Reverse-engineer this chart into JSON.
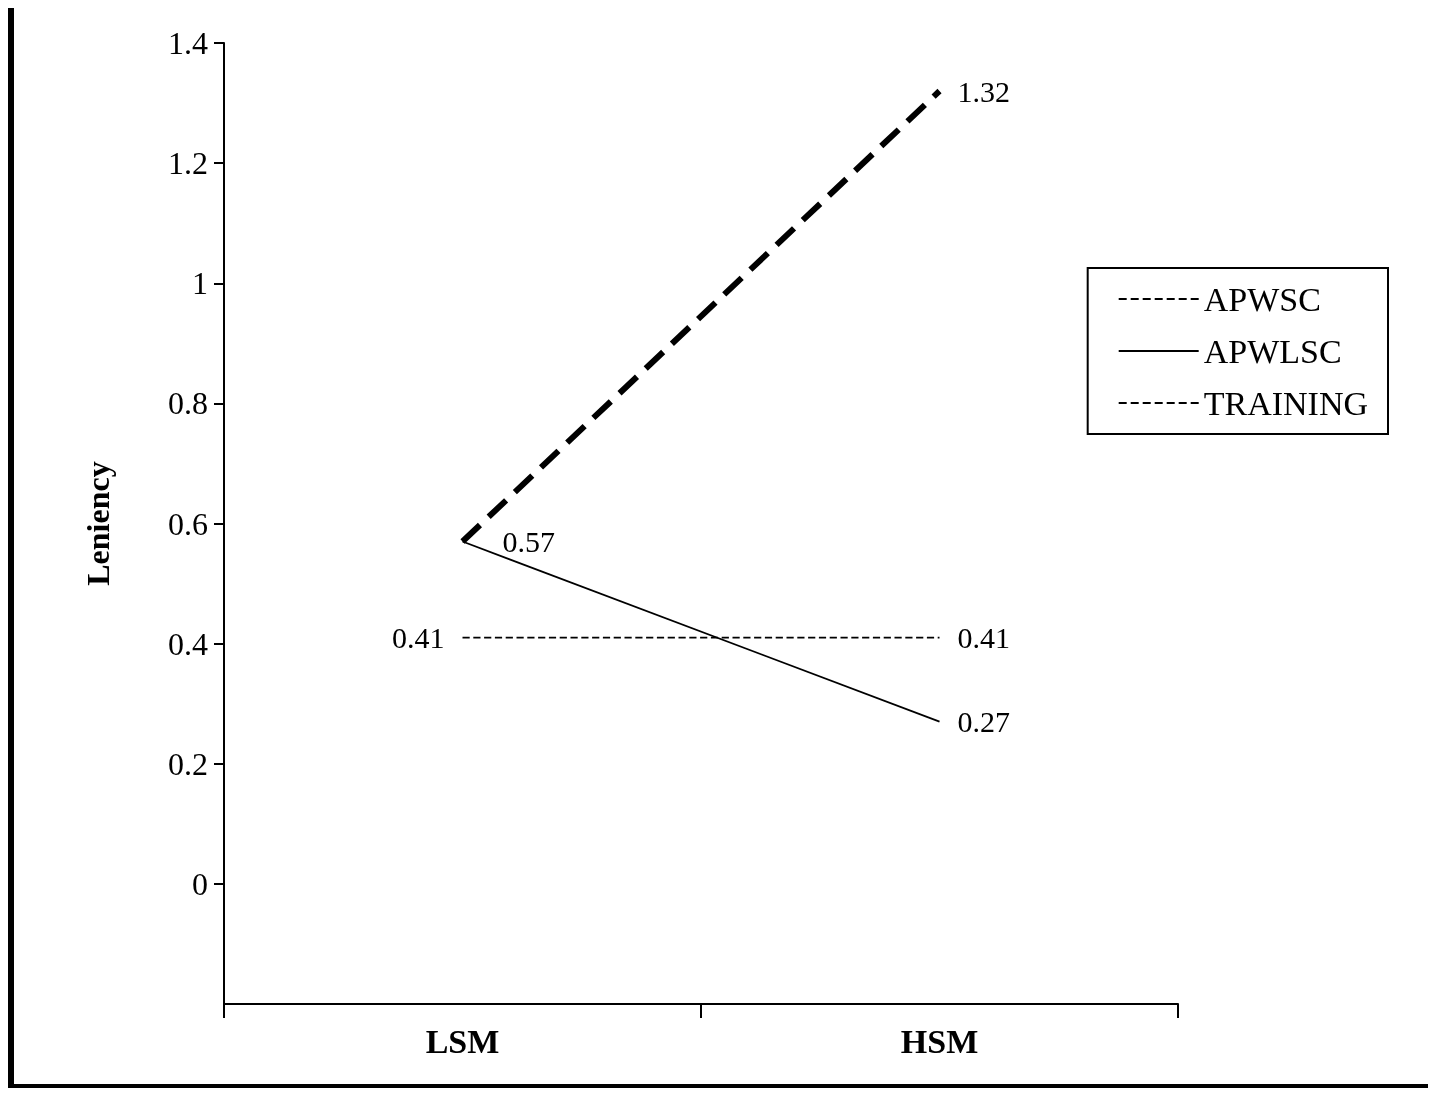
{
  "chart_data": {
    "type": "line",
    "ylabel": "Leniency",
    "categories": [
      "LSM",
      "HSM"
    ],
    "series": [
      {
        "name": "APWSC",
        "color": "#000000",
        "line_style": "dashed",
        "values": [
          0.57,
          1.32
        ],
        "value_labels": [
          null,
          "1.32"
        ]
      },
      {
        "name": "APWLSC",
        "color": "#000000",
        "line_style": "solid",
        "values": [
          0.57,
          0.27
        ],
        "value_labels": [
          "0.57",
          "0.27"
        ]
      },
      {
        "name": "TRAINING",
        "color": "#000000",
        "line_style": "dashed",
        "values": [
          0.41,
          0.41
        ],
        "value_labels": [
          "0.41",
          "0.41"
        ]
      }
    ],
    "ylim": [
      -0.2,
      1.4
    ],
    "yticks": [
      0,
      0.2,
      0.4,
      0.6,
      0.8,
      1,
      1.2,
      1.4
    ],
    "grid": false,
    "legend": "top right",
    "marker": "none"
  }
}
